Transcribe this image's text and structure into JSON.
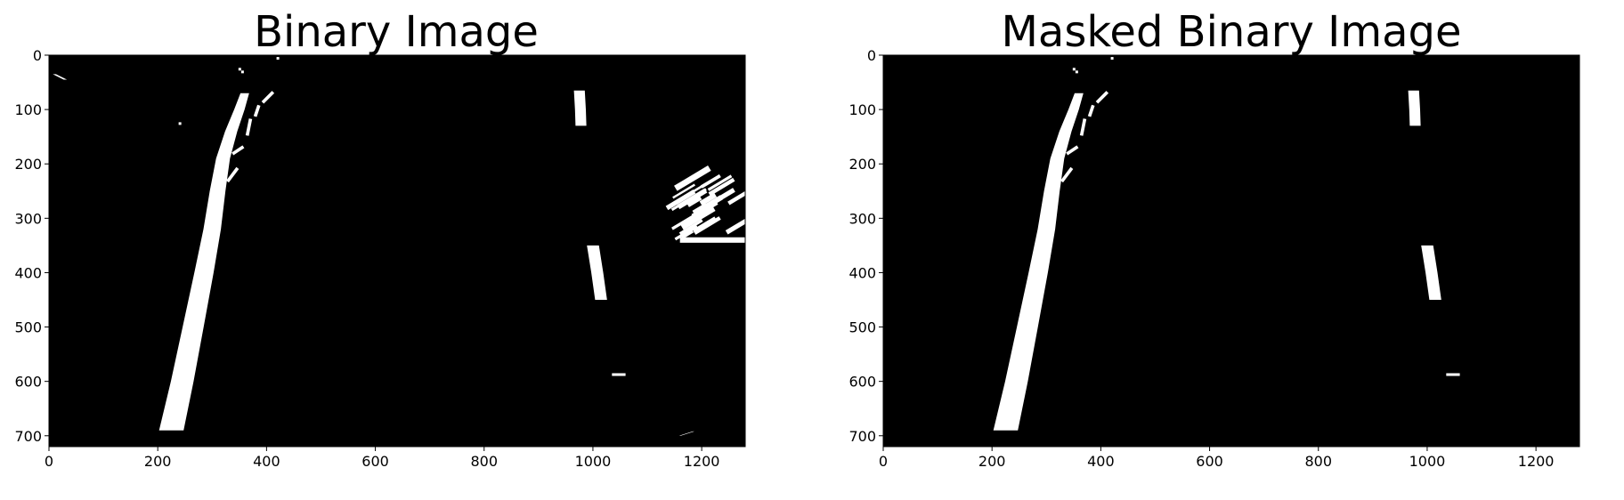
{
  "colors": {
    "background": "#ffffff",
    "image_background": "#000000",
    "foreground_pixels": "#ffffff",
    "axes_text": "#000000"
  },
  "chart_data": [
    {
      "type": "image",
      "title": "Binary Image",
      "xlabel": "",
      "ylabel": "",
      "xlim": [
        0,
        1280
      ],
      "ylim": [
        720,
        0
      ],
      "xticks": [
        0,
        200,
        400,
        600,
        800,
        1000,
        1200
      ],
      "xtick_labels": [
        "0",
        "200",
        "400",
        "600",
        "800",
        "1000",
        "1200"
      ],
      "yticks": [
        0,
        100,
        200,
        300,
        400,
        500,
        600,
        700
      ],
      "ytick_labels": [
        "0",
        "100",
        "200",
        "300",
        "400",
        "500",
        "600",
        "700"
      ],
      "grid": false,
      "image_size": {
        "width": 1280,
        "height": 720
      },
      "features": [
        {
          "name": "left-lane-line",
          "kind": "band",
          "points": [
            [
              225,
              690
            ],
            [
              245,
              600
            ],
            [
              265,
              500
            ],
            [
              285,
              400
            ],
            [
              300,
              320
            ],
            [
              310,
              250
            ],
            [
              320,
              190
            ],
            [
              335,
              140
            ],
            [
              350,
              100
            ],
            [
              360,
              70
            ]
          ],
          "width_start": 45,
          "width_end": 16
        },
        {
          "name": "left-lane-dashes-upper",
          "kind": "dashes",
          "points": [
            [
              330,
              230
            ],
            [
              345,
              210
            ],
            [
              340,
              180
            ],
            [
              355,
              170
            ],
            [
              365,
              145
            ],
            [
              370,
              120
            ],
            [
              380,
              110
            ],
            [
              385,
              95
            ],
            [
              395,
              85
            ],
            [
              410,
              70
            ]
          ],
          "width": 6
        },
        {
          "name": "right-lane-segment-top",
          "kind": "band",
          "points": [
            [
              975,
              65
            ],
            [
              977,
              100
            ],
            [
              978,
              130
            ]
          ],
          "width_start": 20,
          "width_end": 20
        },
        {
          "name": "right-lane-segment-middle",
          "kind": "band",
          "points": [
            [
              1000,
              350
            ],
            [
              1008,
              400
            ],
            [
              1015,
              450
            ]
          ],
          "width_start": 22,
          "width_end": 22
        },
        {
          "name": "right-lane-fleck",
          "kind": "rect",
          "x": [
            1035,
            1060
          ],
          "y": [
            585,
            590
          ]
        },
        {
          "name": "top-left-noise",
          "kind": "band",
          "points": [
            [
              10,
              35
            ],
            [
              30,
              45
            ]
          ],
          "width_start": 6,
          "width_end": 6
        },
        {
          "name": "top-center-noise",
          "kind": "dots",
          "points": [
            [
              350,
              25
            ],
            [
              355,
              30
            ],
            [
              420,
              5
            ],
            [
              240,
              125
            ]
          ]
        },
        {
          "name": "right-shadow-noise",
          "kind": "streaks",
          "region": {
            "x": [
              1130,
              1280
            ],
            "y": [
              220,
              345
            ]
          }
        },
        {
          "name": "right-shadow-bar",
          "kind": "rect",
          "x": [
            1160,
            1280
          ],
          "y": [
            335,
            345
          ]
        },
        {
          "name": "bottom-right-fleck",
          "kind": "band",
          "points": [
            [
              1160,
              700
            ],
            [
              1185,
              692
            ]
          ],
          "width_start": 3,
          "width_end": 3
        }
      ]
    },
    {
      "type": "image",
      "title": "Masked Binary Image",
      "xlabel": "",
      "ylabel": "",
      "xlim": [
        0,
        1280
      ],
      "ylim": [
        720,
        0
      ],
      "xticks": [
        0,
        200,
        400,
        600,
        800,
        1000,
        1200
      ],
      "xtick_labels": [
        "0",
        "200",
        "400",
        "600",
        "800",
        "1000",
        "1200"
      ],
      "yticks": [
        0,
        100,
        200,
        300,
        400,
        500,
        600,
        700
      ],
      "ytick_labels": [
        "0",
        "100",
        "200",
        "300",
        "400",
        "500",
        "600",
        "700"
      ],
      "grid": false,
      "image_size": {
        "width": 1280,
        "height": 720
      },
      "features": [
        {
          "name": "left-lane-line",
          "kind": "band",
          "points": [
            [
              225,
              690
            ],
            [
              245,
              600
            ],
            [
              265,
              500
            ],
            [
              285,
              400
            ],
            [
              300,
              320
            ],
            [
              310,
              250
            ],
            [
              320,
              190
            ],
            [
              335,
              140
            ],
            [
              350,
              100
            ],
            [
              360,
              70
            ]
          ],
          "width_start": 45,
          "width_end": 16
        },
        {
          "name": "left-lane-dashes-upper",
          "kind": "dashes",
          "points": [
            [
              330,
              230
            ],
            [
              345,
              210
            ],
            [
              340,
              180
            ],
            [
              355,
              170
            ],
            [
              365,
              145
            ],
            [
              370,
              120
            ],
            [
              380,
              110
            ],
            [
              385,
              95
            ],
            [
              395,
              85
            ],
            [
              410,
              70
            ]
          ],
          "width": 6
        },
        {
          "name": "right-lane-segment-top",
          "kind": "band",
          "points": [
            [
              975,
              65
            ],
            [
              977,
              100
            ],
            [
              978,
              130
            ]
          ],
          "width_start": 20,
          "width_end": 20
        },
        {
          "name": "right-lane-segment-middle",
          "kind": "band",
          "points": [
            [
              1000,
              350
            ],
            [
              1008,
              400
            ],
            [
              1015,
              450
            ]
          ],
          "width_start": 22,
          "width_end": 22
        },
        {
          "name": "right-lane-fleck",
          "kind": "rect",
          "x": [
            1035,
            1060
          ],
          "y": [
            585,
            590
          ]
        },
        {
          "name": "top-center-noise",
          "kind": "dots",
          "points": [
            [
              350,
              25
            ],
            [
              355,
              30
            ],
            [
              420,
              5
            ]
          ]
        }
      ]
    }
  ]
}
